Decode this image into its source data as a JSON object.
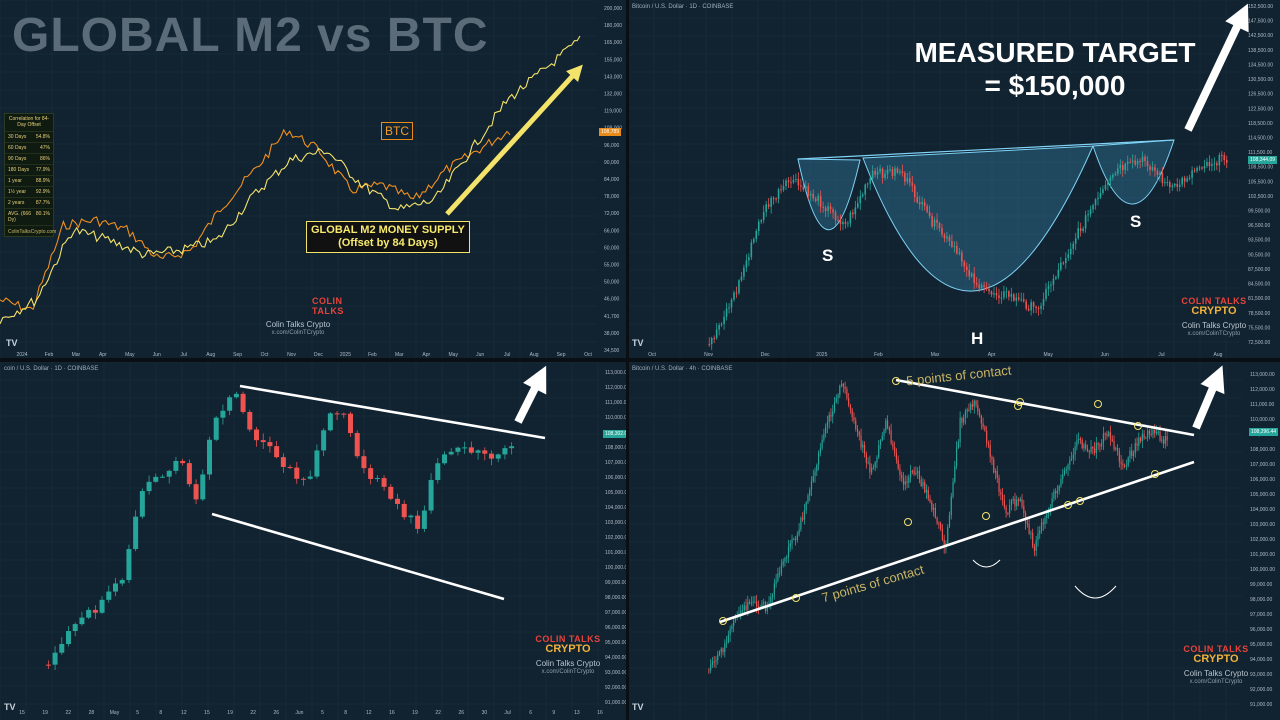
{
  "panel1": {
    "title": "GLOBAL M2 vs BTC",
    "correlation": {
      "header": "Correlation for 84-Day Offset",
      "rows": [
        {
          "period": "30 Days",
          "value": "54.8%"
        },
        {
          "period": "60 Days",
          "value": "47%"
        },
        {
          "period": "90 Days",
          "value": "86%"
        },
        {
          "period": "180 Days",
          "value": "77.9%"
        },
        {
          "period": "1 year",
          "value": "88.9%"
        },
        {
          "period": "1½ year",
          "value": "92.9%"
        },
        {
          "period": "2 years",
          "value": "87.7%"
        },
        {
          "period": "AVG. (666 Dy)",
          "value": "80.1%"
        }
      ],
      "footer": "ColinTalksCrypto.com"
    },
    "btc_label": "BTC",
    "m2_label_line1": "GLOBAL M2 MONEY SUPPLY",
    "m2_label_line2": "(Offset by 84 Days)",
    "price_tag": "108,789",
    "watermark_name": "Colin Talks Crypto",
    "watermark_url": "x.com/ColinTCrypto",
    "logo_line1": "COLIN TALKS",
    "logo_line2": "CRYPTO",
    "tv_logo": "TV"
  },
  "panel2": {
    "header": "Bitcoin / U.S. Dollar · 1D · COINBASE",
    "target_line1": "MEASURED TARGET",
    "target_line2": "= $150,000",
    "label_s_left": "S",
    "label_h": "H",
    "label_s_right": "S",
    "price_tag": "108,344.09",
    "watermark_name": "Colin Talks Crypto",
    "watermark_url": "x.com/ColinTCrypto",
    "logo_line1": "COLIN TALKS",
    "logo_line2": "CRYPTO",
    "tv_logo": "TV"
  },
  "panel3": {
    "header": "coin / U.S. Dollar · 1D · COINBASE",
    "price_tag": "108,302.00",
    "watermark_name": "Colin Talks Crypto",
    "watermark_url": "x.com/ColinTCrypto",
    "logo_line1": "COLIN TALKS",
    "logo_line2": "CRYPTO",
    "tv_logo": "TV"
  },
  "panel4": {
    "header": "Bitcoin / U.S. Dollar · 4h · COINBASE",
    "top_contacts": "5 points of contact",
    "bottom_contacts": "7 points of contact",
    "price_tag": "108,296.44",
    "watermark_name": "Colin Talks Crypto",
    "watermark_url": "x.com/ColinTCrypto",
    "logo_line1": "COLIN TALKS",
    "logo_line2": "CRYPTO",
    "tv_logo": "TV"
  },
  "colors": {
    "btc": "#f0901e",
    "m2": "#f4e36a",
    "up_candle": "#26a69a",
    "down_candle": "#ef5350",
    "pattern_fill": "#3a8fb8",
    "pattern_stroke": "#7fd3f7"
  },
  "chart_data": [
    {
      "type": "line",
      "title": "GLOBAL M2 vs BTC",
      "series": [
        {
          "name": "BTC"
        },
        {
          "name": "GLOBAL M2 MONEY SUPPLY (Offset by 84 Days)"
        }
      ],
      "x_ticks": [
        "2024",
        "Feb",
        "Mar",
        "Apr",
        "May",
        "Jun",
        "Jul",
        "Aug",
        "Sep",
        "Oct",
        "Nov",
        "Dec",
        "2025",
        "Feb",
        "Mar",
        "Apr",
        "May",
        "Jun",
        "Jul",
        "Aug",
        "Sep",
        "Oct"
      ],
      "y_ticks": [
        "200,000",
        "180,000",
        "165,000",
        "155,000",
        "143,000",
        "132,000",
        "119,000",
        "108,000",
        "96,000",
        "90,000",
        "84,000",
        "78,000",
        "72,000",
        "66,000",
        "60,000",
        "55,000",
        "50,000",
        "46,000",
        "41,700",
        "38,000",
        "34,500"
      ]
    },
    {
      "type": "bar",
      "subtype": "candlestick",
      "title": "Bitcoin / U.S. Dollar · 1D · COINBASE",
      "x_ticks": [
        "Oct",
        "Nov",
        "Dec",
        "2025",
        "Feb",
        "Mar",
        "Apr",
        "May",
        "Jun",
        "Jul",
        "Aug"
      ],
      "y_ticks": [
        "152,500.00",
        "147,500.00",
        "142,500.00",
        "138,500.00",
        "134,500.00",
        "130,500.00",
        "126,500.00",
        "122,500.00",
        "118,500.00",
        "114,500.00",
        "111,500.00",
        "108,500.00",
        "105,500.00",
        "102,500.00",
        "99,500.00",
        "96,500.00",
        "93,500.00",
        "90,500.00",
        "87,500.00",
        "84,500.00",
        "81,500.00",
        "78,500.00",
        "75,500.00",
        "72,500.00"
      ],
      "annotations": [
        "S",
        "H",
        "S",
        "MEASURED TARGET = $150,000"
      ]
    },
    {
      "type": "bar",
      "subtype": "candlestick",
      "title": "coin / U.S. Dollar · 1D · COINBASE",
      "x_ticks": [
        "15",
        "19",
        "22",
        "28",
        "May",
        "5",
        "8",
        "12",
        "15",
        "19",
        "22",
        "26",
        "Jun",
        "5",
        "8",
        "12",
        "16",
        "19",
        "22",
        "26",
        "30",
        "Jul",
        "6",
        "9",
        "13",
        "16"
      ],
      "y_ticks": [
        "113,000.00",
        "112,000.00",
        "111,000.00",
        "110,000.00",
        "109,000.00",
        "108,000.00",
        "107,000.00",
        "106,000.00",
        "105,000.00",
        "104,000.00",
        "103,000.00",
        "102,000.00",
        "101,000.00",
        "100,000.00",
        "99,000.00",
        "98,000.00",
        "97,000.00",
        "96,000.00",
        "95,000.00",
        "94,000.00",
        "93,000.00",
        "92,000.00",
        "91,000.00"
      ]
    },
    {
      "type": "bar",
      "subtype": "candlestick",
      "title": "Bitcoin / U.S. Dollar · 4h · COINBASE",
      "y_ticks": [
        "113,000.00",
        "112,000.00",
        "111,000.00",
        "110,000.00",
        "109,000.00",
        "108,000.00",
        "107,000.00",
        "106,000.00",
        "105,000.00",
        "104,000.00",
        "103,000.00",
        "102,000.00",
        "101,000.00",
        "100,000.00",
        "99,000.00",
        "98,000.00",
        "97,000.00",
        "96,000.00",
        "95,000.00",
        "94,000.00",
        "93,000.00",
        "92,000.00",
        "91,000.00"
      ],
      "annotations": [
        "5 points of contact",
        "7 points of contact"
      ]
    }
  ]
}
